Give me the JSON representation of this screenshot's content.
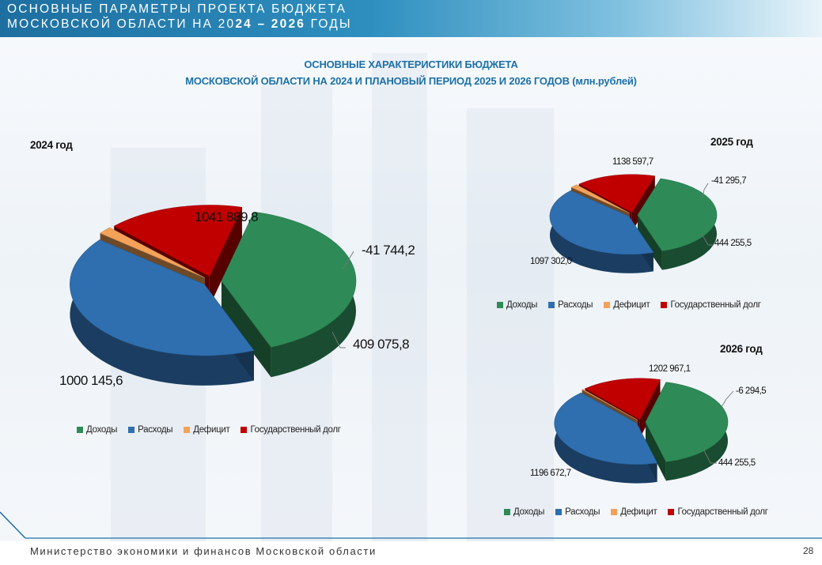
{
  "header": {
    "line1": "ОСНОВНЫЕ ПАРАМЕТРЫ ПРОЕКТА БЮДЖЕТА",
    "line2_prefix": "МОСКОВСКОЙ ОБЛАСТИ НА 20",
    "line2_bold": "24 – 2026",
    "line2_suffix": " ГОДЫ"
  },
  "title": {
    "line1": "ОСНОВНЫЕ ХАРАКТЕРИСТИКИ БЮДЖЕТА",
    "line2": "МОСКОВСКОЙ ОБЛАСТИ НА 2024 И ПЛАНОВЫЙ ПЕРИОД 2025 И 2026 ГОДОВ (млн.рублей)"
  },
  "colors": {
    "income": "#2e8b57",
    "expenses": "#2f6fb0",
    "deficit": "#f4a259",
    "debt": "#c00000"
  },
  "chart_data": [
    {
      "type": "pie",
      "title": "2024 год",
      "categories": [
        "Доходы",
        "Расходы",
        "Дефицит",
        "Государственный долг"
      ],
      "values": [
        1000145.6,
        1041889.8,
        -41744.2,
        409075.8
      ],
      "labels": [
        "1000 145,6",
        "1041 889,8",
        "-41 744,2",
        "409 075,8"
      ],
      "legend_position": "bottom"
    },
    {
      "type": "pie",
      "title": "2025 год",
      "categories": [
        "Доходы",
        "Расходы",
        "Дефицит",
        "Государственный долг"
      ],
      "values": [
        1097302.0,
        1138597.7,
        -41295.7,
        444255.5
      ],
      "labels": [
        "1097 302,0",
        "1138 597,7",
        "-41 295,7",
        "444 255,5"
      ],
      "legend_position": "bottom"
    },
    {
      "type": "pie",
      "title": "2026 год",
      "categories": [
        "Доходы",
        "Расходы",
        "Дефицит",
        "Государственный долг"
      ],
      "values": [
        1196672.7,
        1202967.1,
        -6294.5,
        444255.5
      ],
      "labels": [
        "1196 672,7",
        "1202 967,1",
        "-6 294,5",
        "444 255,5"
      ],
      "legend_position": "bottom"
    }
  ],
  "footer": {
    "text": "Министерство экономики и финансов Московской области",
    "page": "28"
  }
}
